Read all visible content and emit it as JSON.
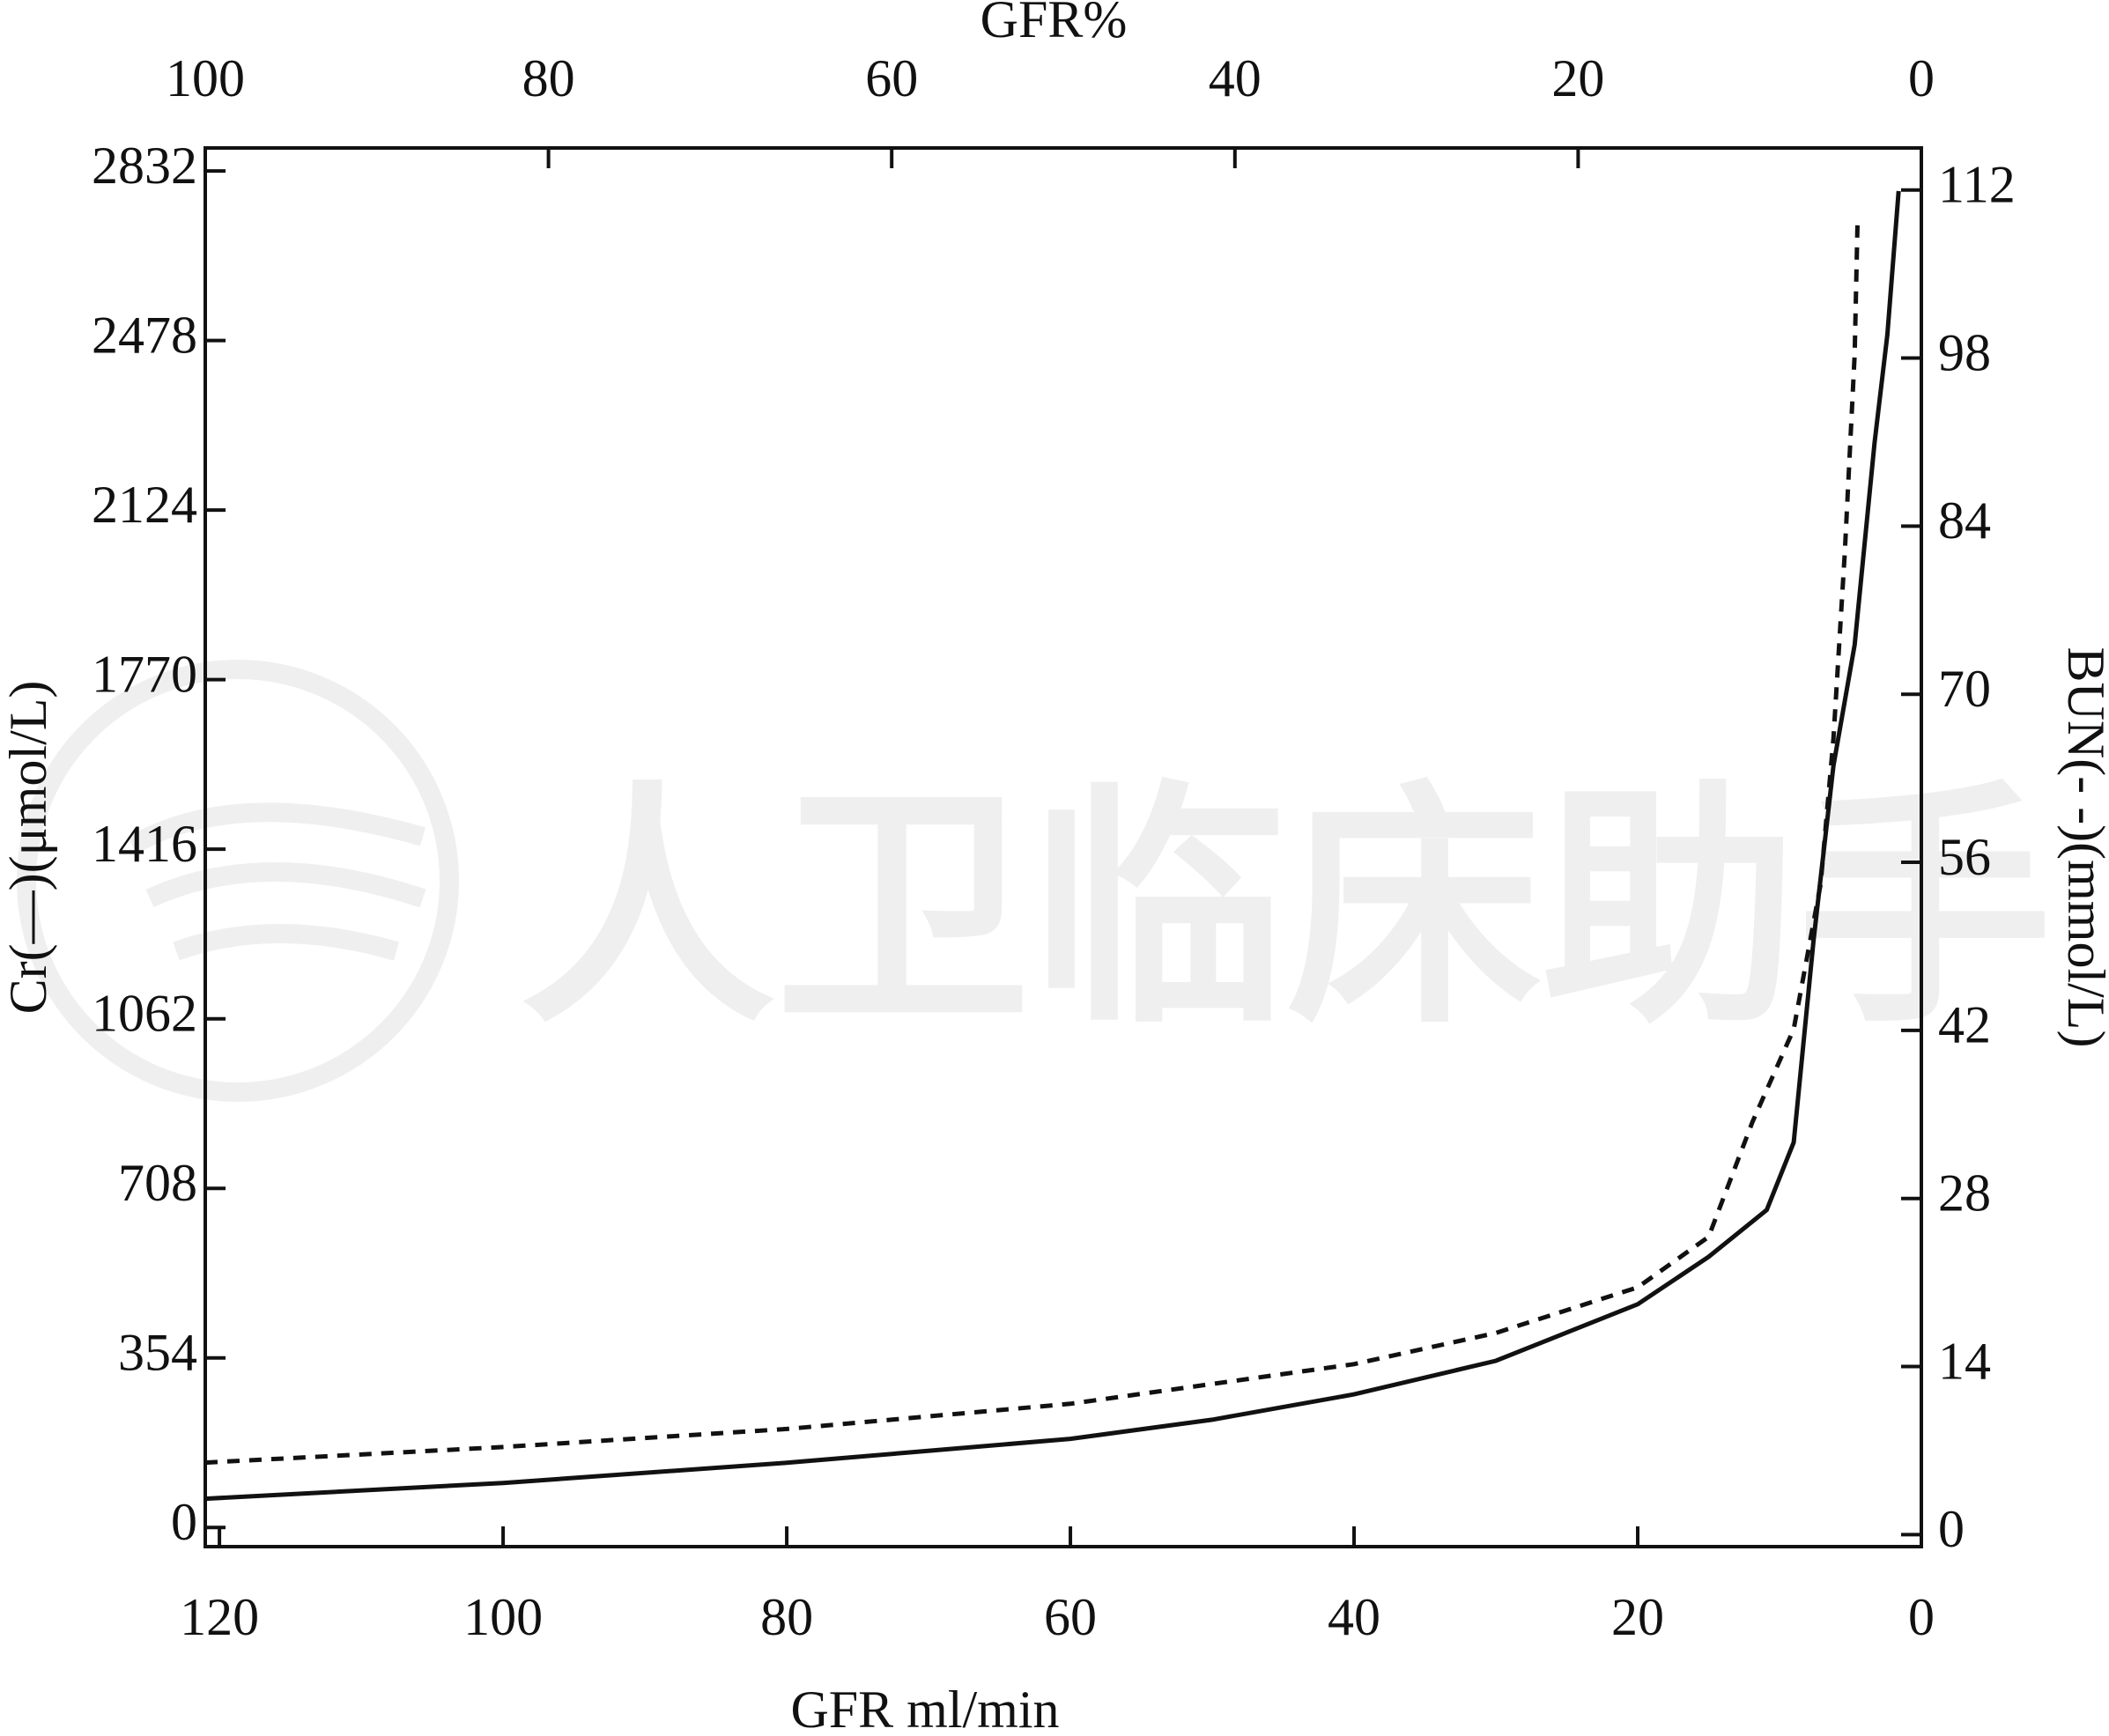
{
  "chart_data": {
    "type": "line",
    "x_label": "GFR ml/min",
    "x2_label": "GFR%",
    "y_label": "Cr(—)(μmol/L)",
    "y2_label": "BUN(- -)(mmol/L)",
    "xlim": [
      121,
      0
    ],
    "xticks": [
      120,
      100,
      80,
      60,
      40,
      20,
      0
    ],
    "x2lim": [
      100,
      0
    ],
    "x2ticks": [
      100,
      80,
      60,
      40,
      20,
      0
    ],
    "ylim": [
      -40,
      2880
    ],
    "yticks": [
      0,
      354,
      708,
      1062,
      1416,
      1770,
      2124,
      2478,
      2832
    ],
    "y2lim": [
      -1,
      115.5
    ],
    "y2ticks": [
      0,
      14,
      28,
      42,
      56,
      70,
      84,
      98,
      112
    ],
    "series": [
      {
        "color": "#111111",
        "style": "solid",
        "x": [
          121,
          100,
          80,
          60,
          50,
          40,
          30,
          20,
          15,
          10.9,
          9,
          7.6,
          6.2,
          4.7,
          3.3,
          2.4,
          1.6
        ],
        "values": [
          60,
          93,
          135,
          185,
          225,
          278,
          348,
          466,
          565,
          663,
          804,
          1225,
          1590,
          1843,
          2265,
          2490,
          2790
        ]
      },
      {
        "color": "#111111",
        "style": "dashed",
        "axis": "y2",
        "x": [
          121,
          100,
          80,
          60,
          40,
          30,
          20,
          15,
          11.9,
          9,
          7.1,
          6.2,
          5.4,
          4.7,
          4.5
        ],
        "values": [
          6,
          7.3,
          8.8,
          10.9,
          14.2,
          16.8,
          20.6,
          24.8,
          34.4,
          42.1,
          54.2,
          66.3,
          81.8,
          98.3,
          109.5
        ]
      }
    ]
  },
  "watermark": "人卫临床助手"
}
